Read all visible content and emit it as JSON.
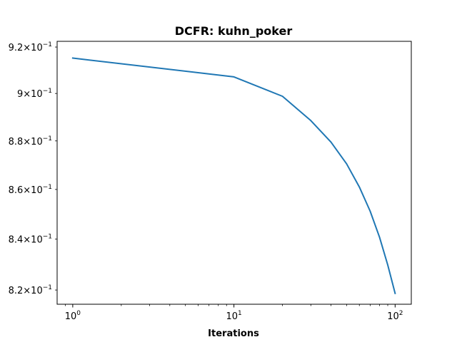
{
  "chart_data": {
    "type": "line",
    "title": "DCFR: kuhn_poker",
    "xlabel": "Iterations",
    "ylabel": "",
    "xscale": "log",
    "yscale": "log",
    "xlim": [
      0.8,
      126
    ],
    "ylim": [
      0.8145,
      0.9225
    ],
    "grid": false,
    "legend": "none",
    "x_ticks": [
      {
        "value": 1,
        "base": "10",
        "exp": "0"
      },
      {
        "value": 10,
        "base": "10",
        "exp": "1"
      },
      {
        "value": 100,
        "base": "10",
        "exp": "2"
      }
    ],
    "y_ticks": [
      {
        "value": 0.82,
        "mant": "8.2",
        "base": "10",
        "exp": "−1"
      },
      {
        "value": 0.84,
        "mant": "8.4",
        "base": "10",
        "exp": "−1"
      },
      {
        "value": 0.86,
        "mant": "8.6",
        "base": "10",
        "exp": "−1"
      },
      {
        "value": 0.88,
        "mant": "8.8",
        "base": "10",
        "exp": "−1"
      },
      {
        "value": 0.9,
        "mant": "9",
        "base": "10",
        "exp": "−1"
      },
      {
        "value": 0.92,
        "mant": "9.2",
        "base": "10",
        "exp": "−1"
      }
    ],
    "series": [
      {
        "color": "#1f77b4",
        "x": [
          1,
          10,
          20,
          30,
          40,
          50,
          60,
          70,
          80,
          90,
          100
        ],
        "y": [
          0.9152,
          0.9071,
          0.8988,
          0.8885,
          0.8795,
          0.8705,
          0.861,
          0.8512,
          0.8408,
          0.8298,
          0.8187
        ]
      }
    ]
  }
}
